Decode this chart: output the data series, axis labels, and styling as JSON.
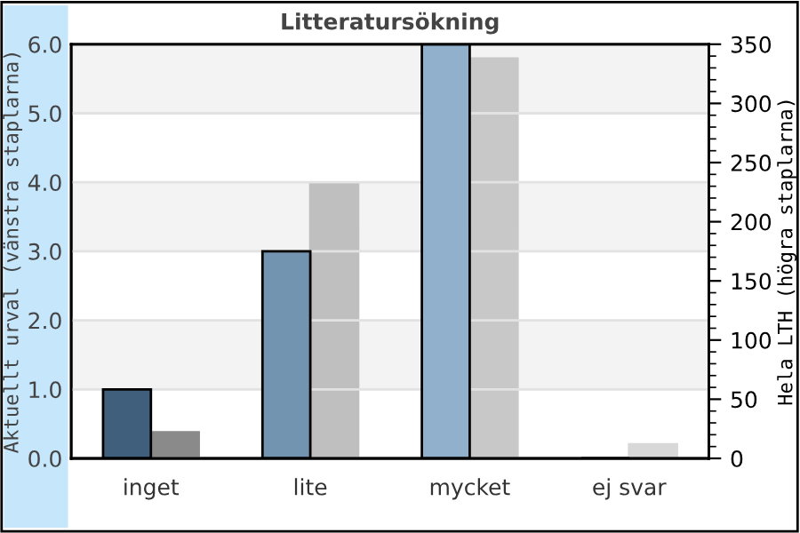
{
  "chart_data": {
    "type": "bar",
    "title": "Litteratursökning",
    "ylabel": "Aktuellt urval (vänstra staplarna)",
    "y2label": "Hela LTH (högra staplarna)",
    "categories": [
      "inget",
      "lite",
      "mycket",
      "ej svar"
    ],
    "series": [
      {
        "colors": [
          "#3f5f7c",
          "#7394b0",
          "#90b0cc",
          "#90b0cc"
        ],
        "values": [
          1.0,
          3.0,
          6.0,
          0
        ]
      },
      {
        "axis": "y2",
        "colors": [
          "#8a8a8a",
          "#bfbfbf",
          "#c8c8c8",
          "#d8d8d8"
        ],
        "values": [
          22,
          233,
          338,
          12
        ]
      }
    ],
    "ylim": [
      0,
      6
    ],
    "yticks": [
      {
        "value": 0,
        "label": "0.0"
      },
      {
        "value": 1,
        "label": "1.0"
      },
      {
        "value": 2,
        "label": "2.0"
      },
      {
        "value": 3,
        "label": "3.0"
      },
      {
        "value": 4,
        "label": "4.0"
      },
      {
        "value": 5,
        "label": "5.0"
      },
      {
        "value": 6,
        "label": "6.0"
      }
    ],
    "y2lim": [
      0,
      350
    ],
    "y2ticks": [
      0,
      50,
      100,
      150,
      200,
      250,
      300,
      350
    ],
    "grid": "y",
    "legend": false
  }
}
